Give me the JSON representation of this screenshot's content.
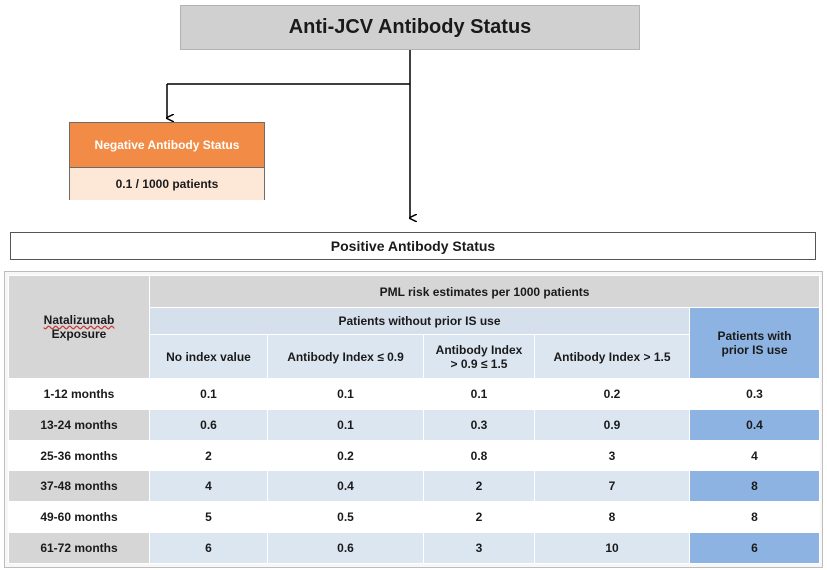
{
  "title": "Anti-JCV Antibody Status",
  "negative": {
    "header": "Negative Antibody Status",
    "value": "0.1 / 1000 patients"
  },
  "positive": {
    "header": "Positive Antibody Status"
  },
  "table": {
    "row_header": [
      "Natalizumab",
      "Exposure"
    ],
    "group_header": "PML risk estimates per 1000 patients",
    "subgroup_header": "Patients without prior IS use",
    "prior_header": "Patients with prior IS use",
    "columns": [
      "No index value",
      "Antibody Index ≤ 0.9",
      "Antibody Index > 0.9 ≤ 1.5",
      "Antibody Index > 1.5"
    ],
    "column_lines": [
      [
        "No index value"
      ],
      [
        "Antibody Index ≤ 0.9"
      ],
      [
        "Antibody Index",
        "> 0.9 ≤ 1.5"
      ],
      [
        "Antibody Index > 1.5"
      ]
    ],
    "prior_lines": [
      "Patients with",
      "prior IS use"
    ],
    "rows": [
      {
        "label": "1-12 months",
        "values": [
          "0.1",
          "0.1",
          "0.1",
          "0.2",
          "0.3"
        ]
      },
      {
        "label": "13-24 months",
        "values": [
          "0.6",
          "0.1",
          "0.3",
          "0.9",
          "0.4"
        ]
      },
      {
        "label": "25-36 months",
        "values": [
          "2",
          "0.2",
          "0.8",
          "3",
          "4"
        ]
      },
      {
        "label": "37-48 months",
        "values": [
          "4",
          "0.4",
          "2",
          "7",
          "8"
        ]
      },
      {
        "label": "49-60 months",
        "values": [
          "5",
          "0.5",
          "2",
          "8",
          "8"
        ]
      },
      {
        "label": "61-72 months",
        "values": [
          "6",
          "0.6",
          "3",
          "10",
          "6"
        ]
      }
    ]
  }
}
